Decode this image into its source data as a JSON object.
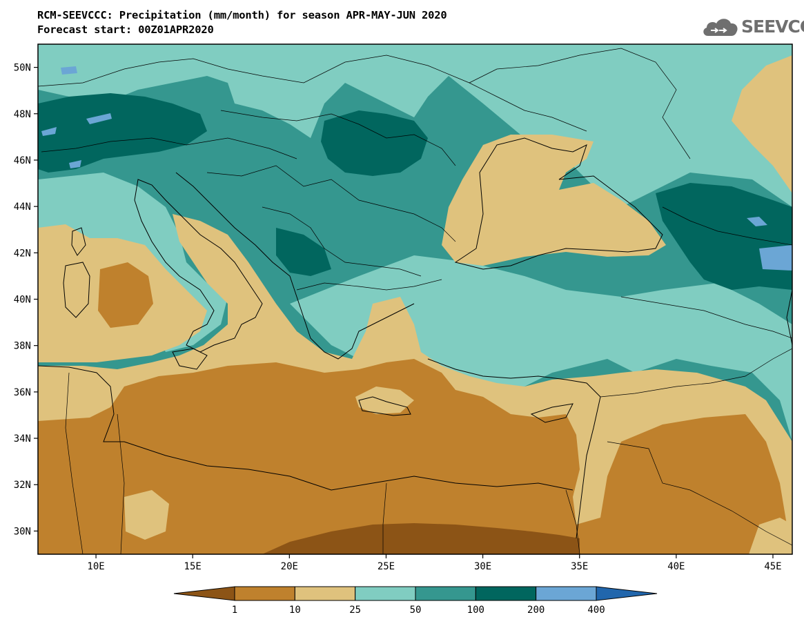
{
  "header": {
    "title_line1": "RCM-SEEVCCC: Precipitation (mm/month) for season APR-MAY-JUN 2020",
    "title_line2": "Forecast start: 00Z01APR2020"
  },
  "logo": {
    "text": "SEEVCCC",
    "icon": "cloud-icon",
    "color": "#6f6f6f"
  },
  "map": {
    "lon_range": [
      7,
      46
    ],
    "lat_range": [
      29,
      51
    ],
    "lat_ticks": [
      {
        "value": 50,
        "label": "50N"
      },
      {
        "value": 48,
        "label": "48N"
      },
      {
        "value": 46,
        "label": "46N"
      },
      {
        "value": 44,
        "label": "44N"
      },
      {
        "value": 42,
        "label": "42N"
      },
      {
        "value": 40,
        "label": "40N"
      },
      {
        "value": 38,
        "label": "38N"
      },
      {
        "value": 36,
        "label": "36N"
      },
      {
        "value": 34,
        "label": "34N"
      },
      {
        "value": 32,
        "label": "32N"
      },
      {
        "value": 30,
        "label": "30N"
      }
    ],
    "lon_ticks": [
      {
        "value": 10,
        "label": "10E"
      },
      {
        "value": 15,
        "label": "15E"
      },
      {
        "value": 20,
        "label": "20E"
      },
      {
        "value": 25,
        "label": "25E"
      },
      {
        "value": 30,
        "label": "30E"
      },
      {
        "value": 35,
        "label": "35E"
      },
      {
        "value": 40,
        "label": "40E"
      },
      {
        "value": 45,
        "label": "45E"
      }
    ]
  },
  "colorbar": {
    "colors": [
      "#8c5416",
      "#bf812d",
      "#dfc27d",
      "#80cdc1",
      "#35978f",
      "#01665e",
      "#6ba6d5",
      "#2166ac"
    ],
    "labels": [
      "1",
      "10",
      "25",
      "50",
      "100",
      "200",
      "400"
    ]
  }
}
